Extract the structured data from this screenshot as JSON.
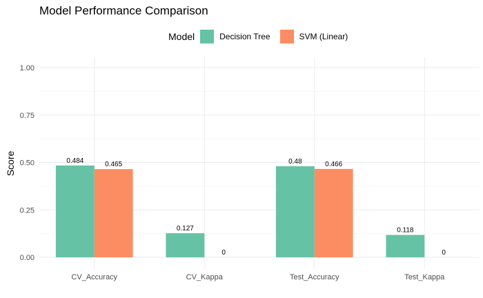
{
  "chart_data": {
    "type": "bar",
    "title": "Model Performance Comparison",
    "xlabel": "",
    "ylabel": "Score",
    "ylim": [
      0,
      1
    ],
    "yticks": [
      "0.00",
      "0.25",
      "0.50",
      "0.75",
      "1.00"
    ],
    "grid": true,
    "legend": {
      "title": "Model",
      "placement": "top"
    },
    "categories": [
      "CV_Accuracy",
      "CV_Kappa",
      "Test_Accuracy",
      "Test_Kappa"
    ],
    "series": [
      {
        "name": "Decision Tree",
        "color": "#66c2a5",
        "values": [
          0.484,
          0.127,
          0.48,
          0.118
        ],
        "labels": [
          "0.484",
          "0.127",
          "0.48",
          "0.118"
        ]
      },
      {
        "name": "SVM (Linear)",
        "color": "#fc8d62",
        "values": [
          0.465,
          0,
          0.466,
          0
        ],
        "labels": [
          "0.465",
          "0",
          "0.466",
          "0"
        ]
      }
    ]
  }
}
